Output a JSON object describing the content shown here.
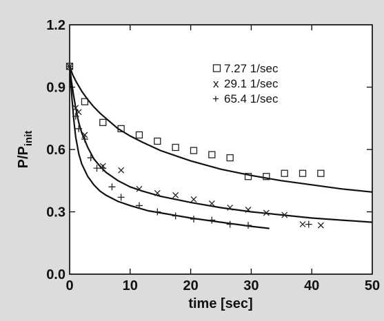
{
  "chart_data": {
    "type": "scatter",
    "xlabel": "time [sec]",
    "ylabel_main": "P/P",
    "ylabel_sub": "init",
    "xlim": [
      0,
      50
    ],
    "ylim": [
      0.0,
      1.2
    ],
    "x_ticks": [
      0,
      10,
      20,
      30,
      40,
      50
    ],
    "y_ticks": [
      0.0,
      0.3,
      0.6,
      0.9,
      1.2
    ],
    "x_tick_labels": [
      "0",
      "10",
      "20",
      "30",
      "40",
      "50"
    ],
    "y_tick_labels": [
      "0.0",
      "0.3",
      "0.6",
      "0.9",
      "1.2"
    ],
    "grid": false,
    "legend_position": "top-right",
    "series": [
      {
        "name": "7.27 1/sec",
        "marker": "square",
        "legend_symbol": "□",
        "points": [
          [
            0.0,
            1.0
          ],
          [
            2.5,
            0.83
          ],
          [
            5.5,
            0.73
          ],
          [
            8.5,
            0.7
          ],
          [
            11.5,
            0.67
          ],
          [
            14.5,
            0.64
          ],
          [
            17.5,
            0.61
          ],
          [
            20.5,
            0.595
          ],
          [
            23.5,
            0.575
          ],
          [
            26.5,
            0.56
          ],
          [
            29.5,
            0.47
          ],
          [
            32.5,
            0.47
          ],
          [
            35.5,
            0.485
          ],
          [
            38.5,
            0.485
          ],
          [
            41.5,
            0.485
          ]
        ],
        "fit": [
          [
            0.0,
            1.0
          ],
          [
            0.5,
            0.96
          ],
          [
            1.0,
            0.93
          ],
          [
            2.0,
            0.88
          ],
          [
            3.0,
            0.84
          ],
          [
            4.0,
            0.805
          ],
          [
            5.0,
            0.775
          ],
          [
            6.0,
            0.75
          ],
          [
            8.0,
            0.7
          ],
          [
            10.0,
            0.665
          ],
          [
            12.0,
            0.635
          ],
          [
            15.0,
            0.595
          ],
          [
            18.0,
            0.565
          ],
          [
            20.0,
            0.545
          ],
          [
            25.0,
            0.505
          ],
          [
            30.0,
            0.475
          ],
          [
            35.0,
            0.45
          ],
          [
            40.0,
            0.43
          ],
          [
            45.0,
            0.41
          ],
          [
            50.0,
            0.395
          ]
        ]
      },
      {
        "name": "29.1 1/sec",
        "marker": "x",
        "legend_symbol": "x",
        "points": [
          [
            0.0,
            1.0
          ],
          [
            1.0,
            0.8
          ],
          [
            1.5,
            0.78
          ],
          [
            2.5,
            0.67
          ],
          [
            5.5,
            0.52
          ],
          [
            8.5,
            0.5
          ],
          [
            11.5,
            0.41
          ],
          [
            14.5,
            0.39
          ],
          [
            17.5,
            0.38
          ],
          [
            20.5,
            0.36
          ],
          [
            23.5,
            0.34
          ],
          [
            26.5,
            0.32
          ],
          [
            29.5,
            0.31
          ],
          [
            32.5,
            0.295
          ],
          [
            35.5,
            0.285
          ],
          [
            38.5,
            0.24
          ],
          [
            41.5,
            0.235
          ]
        ],
        "fit": [
          [
            0.0,
            1.0
          ],
          [
            0.3,
            0.93
          ],
          [
            0.6,
            0.87
          ],
          [
            1.0,
            0.8
          ],
          [
            1.5,
            0.73
          ],
          [
            2.0,
            0.68
          ],
          [
            3.0,
            0.61
          ],
          [
            4.0,
            0.555
          ],
          [
            5.0,
            0.52
          ],
          [
            6.0,
            0.49
          ],
          [
            8.0,
            0.45
          ],
          [
            10.0,
            0.42
          ],
          [
            12.0,
            0.4
          ],
          [
            15.0,
            0.375
          ],
          [
            20.0,
            0.345
          ],
          [
            25.0,
            0.32
          ],
          [
            30.0,
            0.3
          ],
          [
            35.0,
            0.285
          ],
          [
            40.0,
            0.27
          ],
          [
            45.0,
            0.26
          ],
          [
            50.0,
            0.25
          ]
        ]
      },
      {
        "name": "65.4 1/sec",
        "marker": "plus",
        "legend_symbol": "+",
        "points": [
          [
            0.0,
            1.0
          ],
          [
            1.0,
            0.76
          ],
          [
            1.5,
            0.7
          ],
          [
            2.5,
            0.65
          ],
          [
            3.5,
            0.56
          ],
          [
            4.5,
            0.51
          ],
          [
            5.5,
            0.51
          ],
          [
            7.0,
            0.42
          ],
          [
            8.5,
            0.37
          ],
          [
            11.5,
            0.33
          ],
          [
            14.5,
            0.3
          ],
          [
            17.5,
            0.28
          ],
          [
            20.5,
            0.265
          ],
          [
            23.5,
            0.26
          ],
          [
            26.5,
            0.24
          ],
          [
            29.5,
            0.235
          ],
          [
            39.5,
            0.24
          ]
        ],
        "fit": [
          [
            0.0,
            1.0
          ],
          [
            0.2,
            0.92
          ],
          [
            0.4,
            0.84
          ],
          [
            0.7,
            0.74
          ],
          [
            1.0,
            0.66
          ],
          [
            1.5,
            0.58
          ],
          [
            2.0,
            0.53
          ],
          [
            3.0,
            0.47
          ],
          [
            4.0,
            0.43
          ],
          [
            5.0,
            0.4
          ],
          [
            6.0,
            0.38
          ],
          [
            8.0,
            0.35
          ],
          [
            10.0,
            0.33
          ],
          [
            13.0,
            0.305
          ],
          [
            16.0,
            0.29
          ],
          [
            20.0,
            0.27
          ],
          [
            25.0,
            0.25
          ],
          [
            30.0,
            0.23
          ],
          [
            33.0,
            0.22
          ]
        ]
      }
    ]
  }
}
